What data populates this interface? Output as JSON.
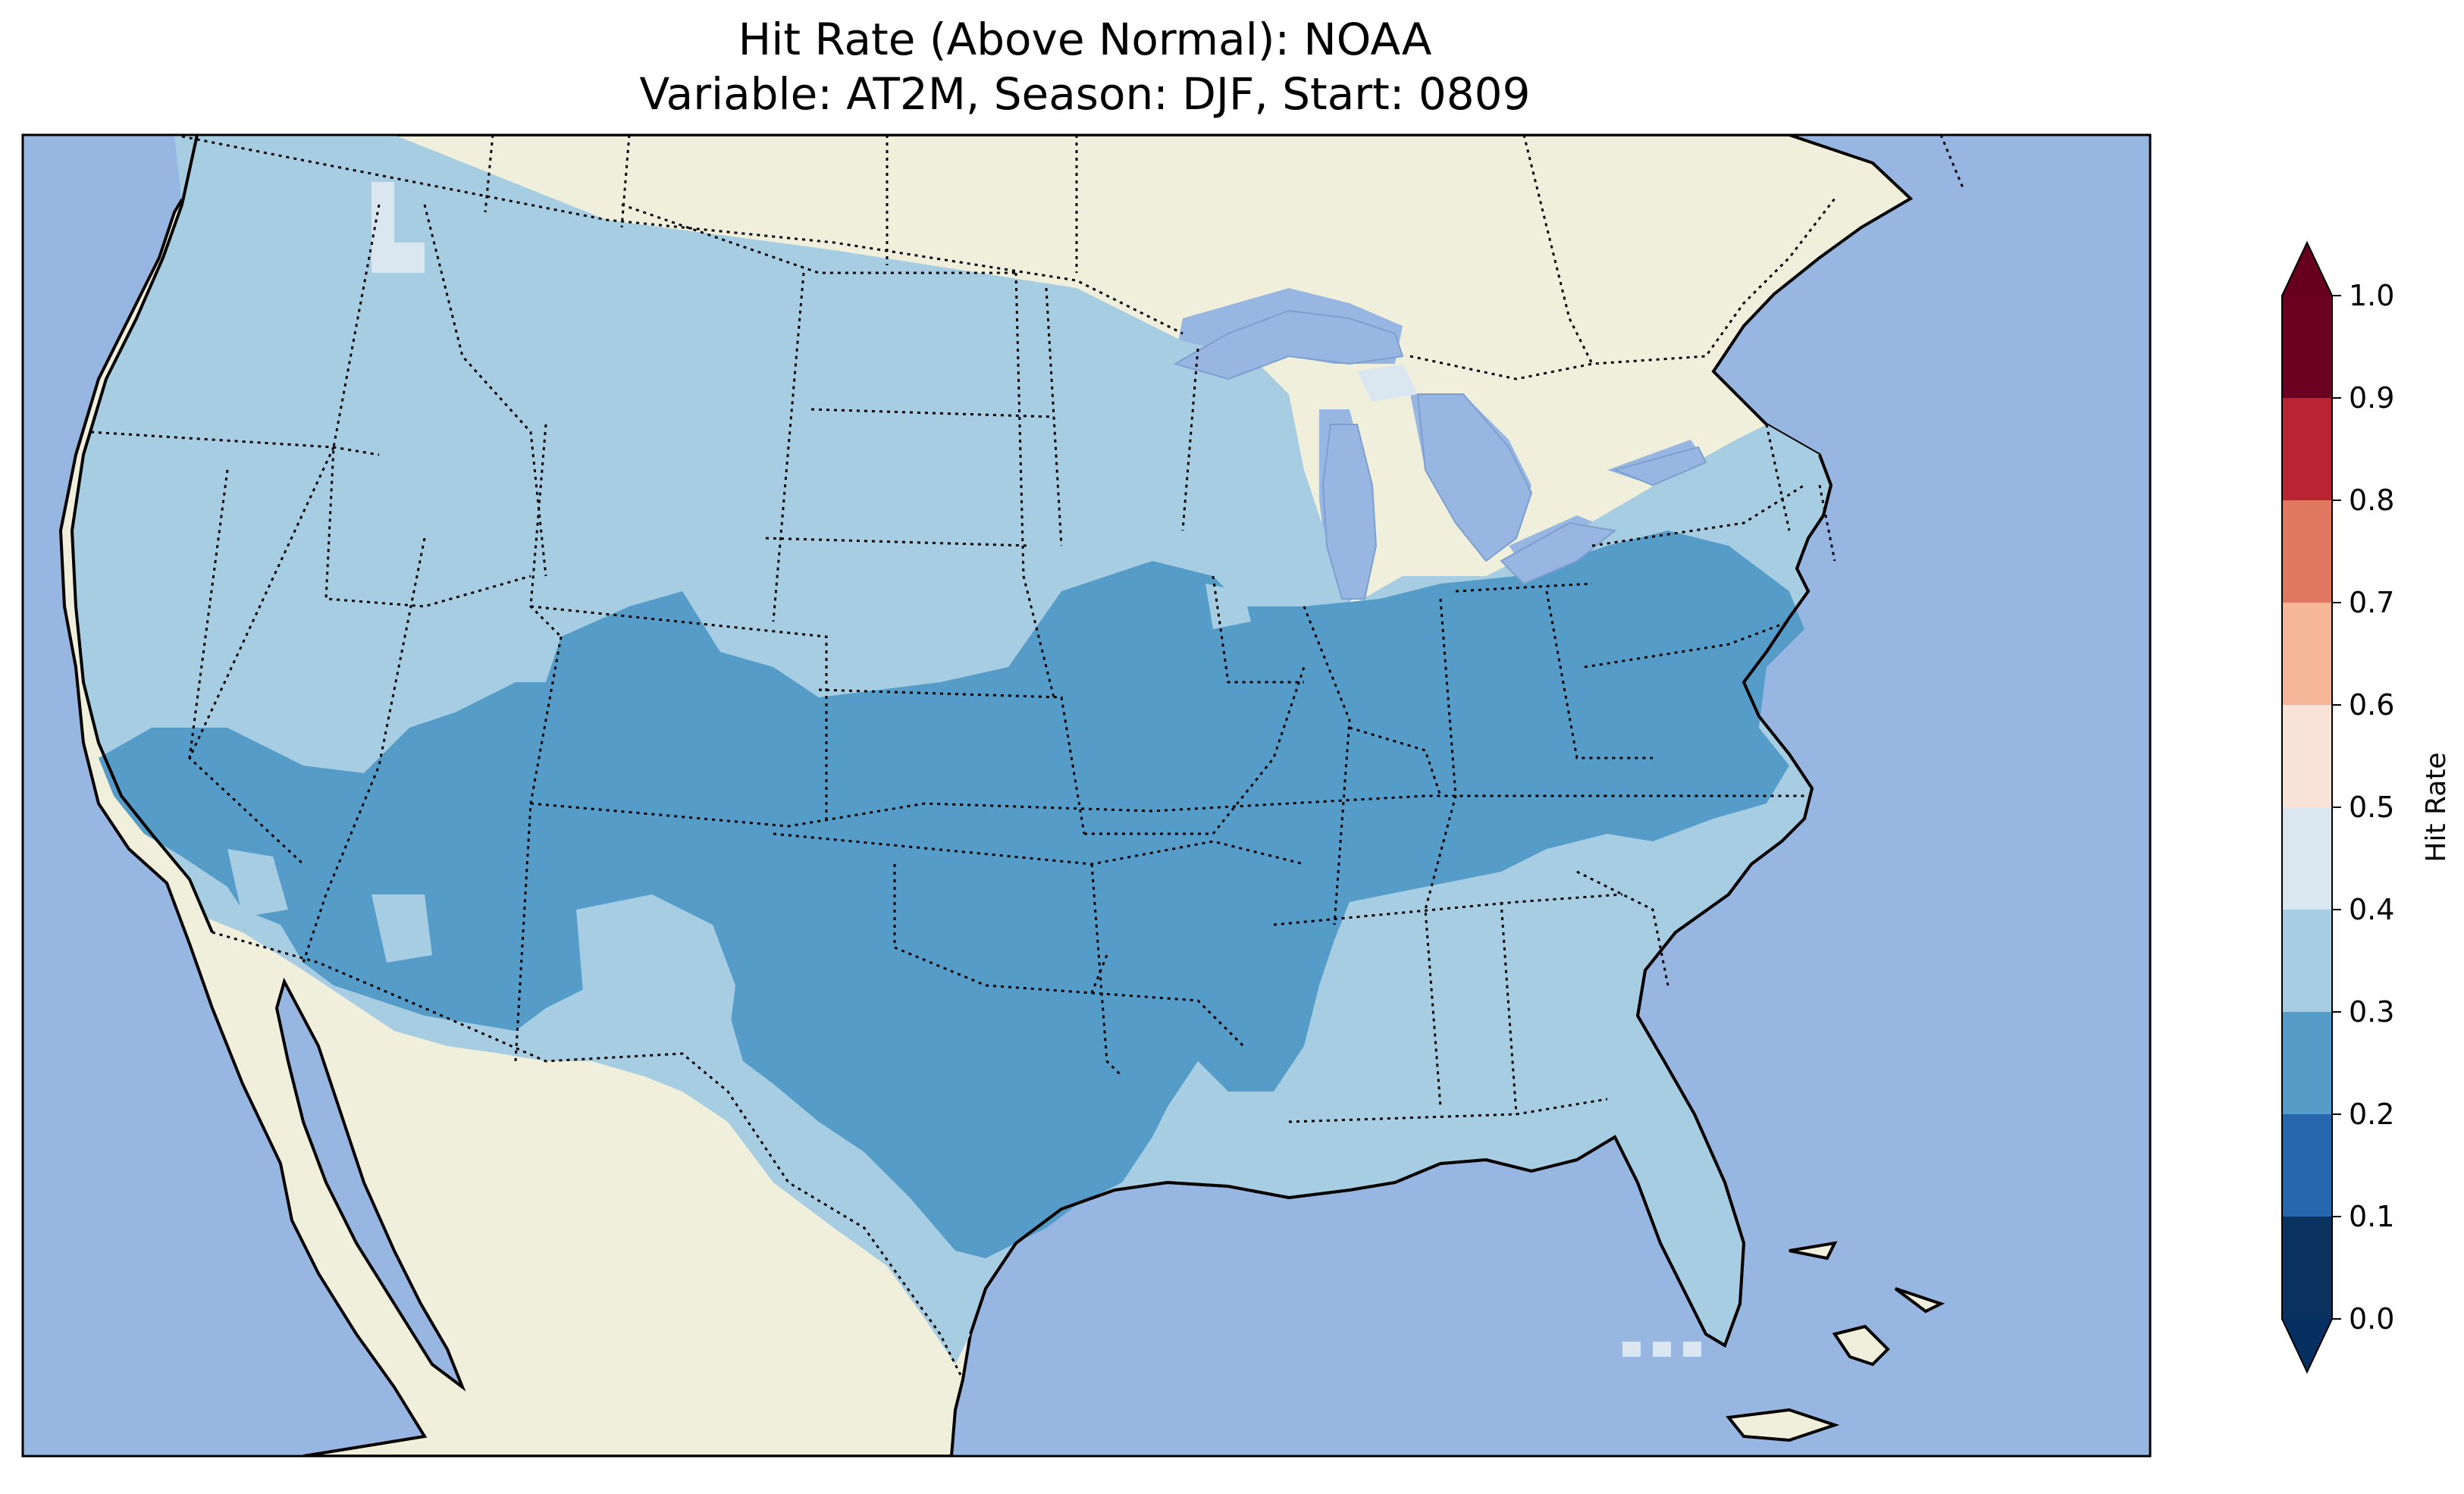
{
  "title": {
    "line1": "Hit Rate (Above Normal): NOAA",
    "line2": "Variable: AT2M, Season: DJF, Start: 0809"
  },
  "colors": {
    "ocean": "#97b6e1",
    "land": "#efefdb",
    "lakes": "#97b6e1",
    "frame": "#000000"
  },
  "colorbar": {
    "label": "Hit Rate",
    "extend": "both",
    "boundaries": [
      0.0,
      0.1,
      0.2,
      0.3,
      0.4,
      0.5,
      0.6,
      0.7,
      0.8,
      0.9,
      1.0
    ],
    "tick_labels": [
      "0.0",
      "0.1",
      "0.2",
      "0.3",
      "0.4",
      "0.5",
      "0.6",
      "0.7",
      "0.8",
      "0.9",
      "1.0"
    ],
    "colors": [
      "#053061",
      "#2166ac",
      "#4393c3",
      "#92c5de",
      "#d1e5f0",
      "#f7f7f7",
      "#fddbc7",
      "#f4a582",
      "#d6604d",
      "#b2182b",
      "#67001f"
    ],
    "bin_colors": [
      "#0b325f",
      "#2767ad",
      "#559dc8",
      "#a7cde2",
      "#dbe7f0",
      "#f9e3d9",
      "#f5b797",
      "#e07861",
      "#b92433",
      "#6b0020"
    ]
  },
  "map": {
    "projection": "lambert-conformal",
    "region": "CONUS",
    "features": [
      "coastlines",
      "state-borders",
      "country-borders",
      "lakes"
    ],
    "hit_rate_regions": [
      {
        "area": "northern and western states",
        "bin": "0.3-0.4"
      },
      {
        "area": "southern plains, midwest, ohio valley, mid-atlantic, desert southwest",
        "bin": "0.2-0.3"
      },
      {
        "area": "gulf coast, southeast, florida, south texas, new england",
        "bin": "0.3-0.4"
      },
      {
        "area": "northern idaho / washington, michigan upper peninsula spots",
        "bin": "0.4-0.5"
      }
    ]
  }
}
